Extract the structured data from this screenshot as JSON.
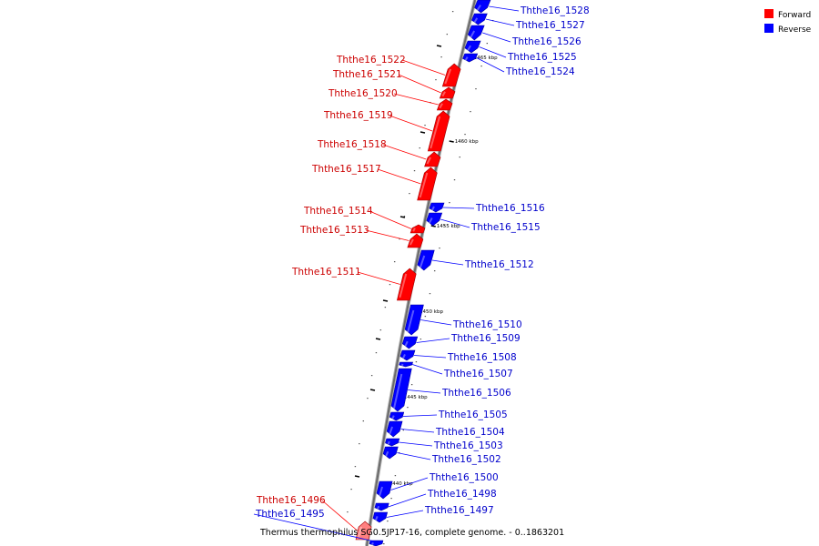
{
  "caption": "Thermus thermophilus SG0.5JP17-16, complete genome. - 0..1863201",
  "legend": [
    {
      "label": "Forward",
      "color": "#ff0000"
    },
    {
      "label": "Reverse",
      "color": "#0000ff"
    }
  ],
  "colors": {
    "forward": "#ff0000",
    "reverse": "#0000ff",
    "forward_light": "#ff8080",
    "backbone": "#808080"
  },
  "chart_data": {
    "type": "genome-map",
    "axis_unit": "kbp",
    "ticks": [
      "1440 kbp",
      "1445 kbp",
      "1450 kbp",
      "1455 kbp",
      "1460 kbp",
      "1465 kbp"
    ],
    "genes": [
      {
        "name": "Ththe16_1528",
        "strand": "reverse"
      },
      {
        "name": "Ththe16_1527",
        "strand": "reverse"
      },
      {
        "name": "Ththe16_1526",
        "strand": "reverse"
      },
      {
        "name": "Ththe16_1525",
        "strand": "reverse"
      },
      {
        "name": "Ththe16_1524",
        "strand": "reverse"
      },
      {
        "name": "Ththe16_1522",
        "strand": "forward"
      },
      {
        "name": "Ththe16_1521",
        "strand": "forward"
      },
      {
        "name": "Ththe16_1520",
        "strand": "forward"
      },
      {
        "name": "Ththe16_1519",
        "strand": "forward"
      },
      {
        "name": "Ththe16_1518",
        "strand": "forward"
      },
      {
        "name": "Ththe16_1517",
        "strand": "forward"
      },
      {
        "name": "Ththe16_1516",
        "strand": "reverse"
      },
      {
        "name": "Ththe16_1515",
        "strand": "reverse"
      },
      {
        "name": "Ththe16_1514",
        "strand": "forward"
      },
      {
        "name": "Ththe16_1513",
        "strand": "forward"
      },
      {
        "name": "Ththe16_1512",
        "strand": "reverse"
      },
      {
        "name": "Ththe16_1511",
        "strand": "forward"
      },
      {
        "name": "Ththe16_1510",
        "strand": "reverse"
      },
      {
        "name": "Ththe16_1509",
        "strand": "reverse"
      },
      {
        "name": "Ththe16_1508",
        "strand": "reverse"
      },
      {
        "name": "Ththe16_1507",
        "strand": "reverse"
      },
      {
        "name": "Ththe16_1506",
        "strand": "reverse"
      },
      {
        "name": "Ththe16_1505",
        "strand": "reverse"
      },
      {
        "name": "Ththe16_1504",
        "strand": "reverse"
      },
      {
        "name": "Ththe16_1503",
        "strand": "reverse"
      },
      {
        "name": "Ththe16_1502",
        "strand": "reverse"
      },
      {
        "name": "Ththe16_1500",
        "strand": "reverse"
      },
      {
        "name": "Ththe16_1498",
        "strand": "reverse"
      },
      {
        "name": "Ththe16_1497",
        "strand": "reverse"
      },
      {
        "name": "Ththe16_1496",
        "strand": "forward"
      },
      {
        "name": "Ththe16_1495",
        "strand": "reverse"
      }
    ]
  }
}
